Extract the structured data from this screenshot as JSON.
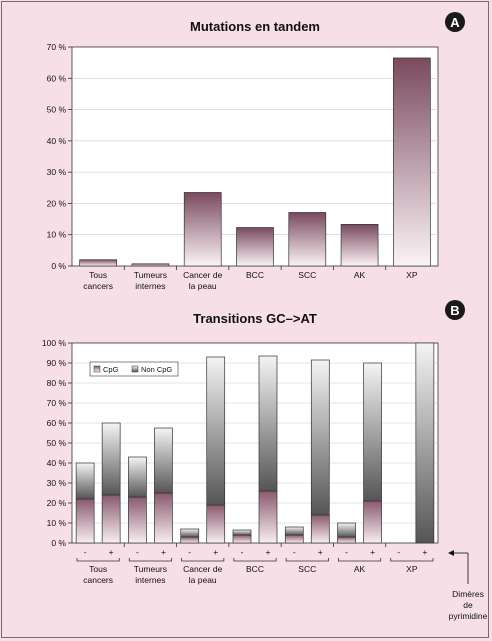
{
  "chart_data": [
    {
      "type": "bar",
      "title": "Mutations en tandem",
      "badge": "A",
      "y_ticks": [
        "0 %",
        "10 %",
        "20 %",
        "30 %",
        "40 %",
        "50 %",
        "60 %",
        "70 %"
      ],
      "ylim": [
        0,
        70
      ],
      "grid": true,
      "categories": [
        [
          "Tous",
          "cancers"
        ],
        [
          "Tumeurs",
          "internes"
        ],
        [
          "Cancer de",
          "la peau"
        ],
        [
          "BCC"
        ],
        [
          "SCC"
        ],
        [
          "AK"
        ],
        [
          "XP"
        ]
      ],
      "values": [
        2,
        0.7,
        23.5,
        12.3,
        17.1,
        13.3,
        66.5
      ],
      "colors": {
        "top": "#7a4a5e",
        "bottom": "#fbf3f6"
      }
    },
    {
      "type": "bar",
      "stacked": true,
      "title": "Transitions GC–>AT",
      "badge": "B",
      "y_ticks": [
        "0 %",
        "10 %",
        "20 %",
        "30 %",
        "40 %",
        "50 %",
        "60 %",
        "70 %",
        "80 %",
        "90 %",
        "100 %"
      ],
      "ylim": [
        0,
        100
      ],
      "grid": true,
      "legend": {
        "position": "top-left",
        "items": [
          "CpG",
          "Non CpG"
        ]
      },
      "groups": [
        [
          "Tous",
          "cancers"
        ],
        [
          "Tumeurs",
          "internes"
        ],
        [
          "Cancer de",
          "la peau"
        ],
        [
          "BCC"
        ],
        [
          "SCC"
        ],
        [
          "AK"
        ],
        [
          "XP"
        ]
      ],
      "sub_labels": [
        "-",
        "+"
      ],
      "series": [
        {
          "name": "CpG",
          "values": [
            [
              22,
              24
            ],
            [
              23,
              25
            ],
            [
              3,
              19
            ],
            [
              4,
              26
            ],
            [
              4,
              14
            ],
            [
              3,
              21
            ],
            [
              0,
              0
            ]
          ]
        },
        {
          "name": "Non CpG",
          "values": [
            [
              18,
              36
            ],
            [
              20,
              32.5
            ],
            [
              4,
              74
            ],
            [
              2.5,
              67.5
            ],
            [
              4,
              77.5
            ],
            [
              7,
              69
            ],
            [
              0,
              100
            ]
          ]
        }
      ],
      "colors": {
        "cpg_top": "#8a5a6e",
        "cpg_bottom": "#f8eef2",
        "noncpg_top": "#f4f4f4",
        "noncpg_bottom": "#555555"
      },
      "annotation": [
        "Dimères",
        "de",
        "pyrimidine"
      ]
    }
  ]
}
